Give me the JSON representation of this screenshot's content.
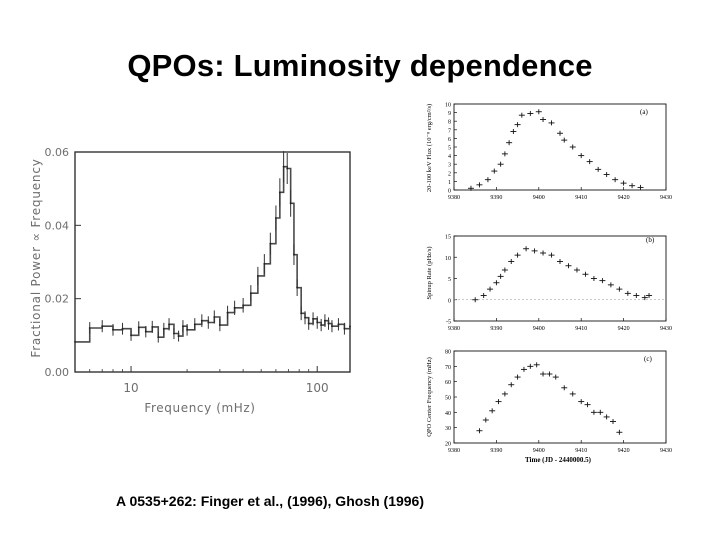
{
  "slide": {
    "title": "QPOs: Luminosity dependence",
    "caption": "A 0535+262: Finger et al., (1996), Ghosh (1996)"
  },
  "colors": {
    "ink": "#000000",
    "grey_ink": "#6e6e6e",
    "background": "#ffffff"
  },
  "chart_data": [
    {
      "id": "power-spectrum",
      "type": "line",
      "title": "",
      "xlabel": "Frequency (mHz)",
      "ylabel": "Fractional Power ∝ Frequency",
      "xscale": "log",
      "xlim": [
        5,
        150
      ],
      "ylim": [
        0,
        0.06
      ],
      "xticks": [
        "10",
        "100"
      ],
      "yticks": [
        "0.00",
        "0.02",
        "0.04",
        "0.06"
      ],
      "series": [
        {
          "name": "spectrum",
          "x": [
            5,
            6,
            7,
            8,
            9,
            10,
            11,
            12,
            13,
            14,
            15,
            16,
            17,
            18,
            19,
            20,
            22,
            24,
            26,
            28,
            30,
            33,
            36,
            40,
            44,
            48,
            52,
            56,
            60,
            63,
            66,
            69,
            72,
            75,
            78,
            82,
            86,
            90,
            95,
            100,
            105,
            110,
            115,
            120,
            130,
            140,
            150
          ],
          "y": [
            0.0082,
            0.012,
            0.0125,
            0.0115,
            0.0118,
            0.01,
            0.0122,
            0.011,
            0.0123,
            0.0095,
            0.0118,
            0.013,
            0.0105,
            0.0098,
            0.0125,
            0.0115,
            0.013,
            0.014,
            0.0135,
            0.015,
            0.0128,
            0.0162,
            0.0175,
            0.0182,
            0.0215,
            0.0262,
            0.0295,
            0.035,
            0.042,
            0.049,
            0.056,
            0.0555,
            0.046,
            0.032,
            0.023,
            0.016,
            0.0148,
            0.0132,
            0.0145,
            0.0135,
            0.0128,
            0.014,
            0.0132,
            0.0125,
            0.013,
            0.0118,
            0.0125
          ]
        }
      ]
    },
    {
      "id": "panel-a",
      "type": "scatter",
      "panel_label": "(a)",
      "ylabel": "20-100 keV Flux (10⁻⁸ erg/cm²/s)",
      "xlim": [
        9380,
        9430
      ],
      "ylim": [
        0,
        10
      ],
      "xticks": [
        "9380",
        "9390",
        "9400",
        "9410",
        "9420",
        "9430"
      ],
      "yticks": [
        "0",
        "1",
        "2",
        "3",
        "4",
        "5",
        "6",
        "7",
        "8",
        "9",
        "10"
      ],
      "series": [
        {
          "name": "flux",
          "x": [
            9384,
            9386,
            9388,
            9389.5,
            9391,
            9392,
            9393,
            9394,
            9395,
            9396,
            9398,
            9400,
            9401,
            9403,
            9405,
            9406,
            9408,
            9410,
            9412,
            9414,
            9416,
            9418,
            9420,
            9422,
            9424
          ],
          "y": [
            0.2,
            0.6,
            1.2,
            2.2,
            3.0,
            4.2,
            5.5,
            6.8,
            7.6,
            8.7,
            8.9,
            9.1,
            8.2,
            7.8,
            6.6,
            5.8,
            5.0,
            4.0,
            3.3,
            2.4,
            1.8,
            1.2,
            0.8,
            0.5,
            0.3
          ]
        }
      ]
    },
    {
      "id": "panel-b",
      "type": "scatter",
      "panel_label": "(b)",
      "ylabel": "Spinup Rate (pHz/s)",
      "xlim": [
        9380,
        9430
      ],
      "ylim": [
        -5,
        15
      ],
      "xticks": [
        "9380",
        "9390",
        "9400",
        "9410",
        "9420",
        "9430"
      ],
      "yticks": [
        "-5",
        "0",
        "5",
        "10",
        "15"
      ],
      "series": [
        {
          "name": "spinup",
          "x": [
            9385,
            9387,
            9388.5,
            9390,
            9391,
            9392,
            9393.5,
            9395,
            9397,
            9399,
            9401,
            9403,
            9405,
            9407,
            9409,
            9411,
            9413,
            9415,
            9417,
            9419,
            9421,
            9423,
            9425,
            9426
          ],
          "y": [
            0,
            1,
            2.5,
            4,
            5.5,
            7,
            9,
            10.5,
            12,
            11.5,
            11,
            10.5,
            9,
            8,
            7,
            6,
            5,
            4.5,
            3.5,
            2.5,
            1.5,
            1,
            0.5,
            1
          ]
        }
      ]
    },
    {
      "id": "panel-c",
      "type": "scatter",
      "panel_label": "(c)",
      "ylabel": "QPO Center Frequency (mHz)",
      "xlabel": "Time (JD - 2440000.5)",
      "xlim": [
        9380,
        9430
      ],
      "ylim": [
        20,
        80
      ],
      "xticks": [
        "9380",
        "9390",
        "9400",
        "9410",
        "9420",
        "9430"
      ],
      "yticks": [
        "20",
        "30",
        "40",
        "50",
        "60",
        "70",
        "80"
      ],
      "series": [
        {
          "name": "qpo",
          "x": [
            9386,
            9387.5,
            9389,
            9390.5,
            9392,
            9393.5,
            9395,
            9396.5,
            9398,
            9399.5,
            9401,
            9402.5,
            9404,
            9406,
            9408,
            9410,
            9411.5,
            9413,
            9414.5,
            9416,
            9417.5,
            9419
          ],
          "y": [
            28,
            35,
            41,
            47,
            52,
            58,
            63,
            68,
            70,
            71,
            65,
            65,
            63,
            56,
            52,
            47,
            45,
            40,
            40,
            37,
            34,
            27
          ]
        }
      ]
    }
  ]
}
